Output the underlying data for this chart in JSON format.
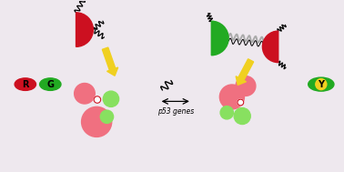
{
  "bg_color": "#eee8ee",
  "title": "p53 genes",
  "red_color": "#f07080",
  "green_color": "#88e060",
  "dark_red": "#cc1020",
  "dark_green": "#22aa22",
  "yellow": "#f0d020",
  "left_R": "R",
  "left_G": "G",
  "right_Y": "Y",
  "figw": 3.78,
  "figh": 1.89,
  "dpi": 100
}
